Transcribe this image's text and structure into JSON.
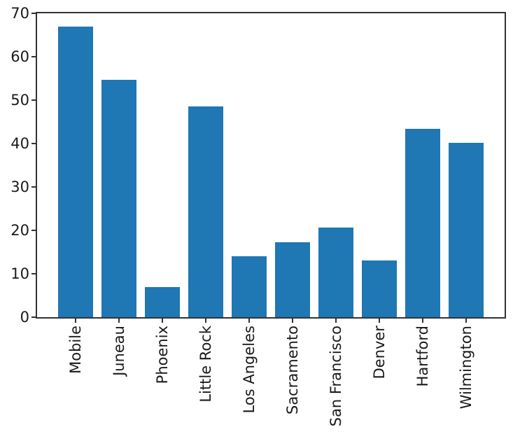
{
  "chart_data": {
    "type": "bar",
    "title": "",
    "xlabel": "",
    "ylabel": "",
    "categories": [
      "Mobile",
      "Juneau",
      "Phoenix",
      "Little Rock",
      "Los Angeles",
      "Sacramento",
      "San Francisco",
      "Denver",
      "Hartford",
      "Wilmington"
    ],
    "values": [
      67.0,
      54.7,
      7.0,
      48.5,
      14.0,
      17.2,
      20.7,
      13.0,
      43.4,
      40.2
    ],
    "ylim": [
      0,
      70
    ],
    "yticks": [
      0,
      10,
      20,
      30,
      40,
      50,
      60,
      70
    ],
    "ytick_labels": [
      "0",
      "10",
      "20",
      "30",
      "40",
      "50",
      "60",
      "70"
    ],
    "x_tick_rotation": 90,
    "grid": false,
    "legend": "none",
    "bar_color": "#1f77b4",
    "axis_color": "#333333",
    "text_color": "#1a1a1a",
    "background_color": "#ffffff"
  }
}
